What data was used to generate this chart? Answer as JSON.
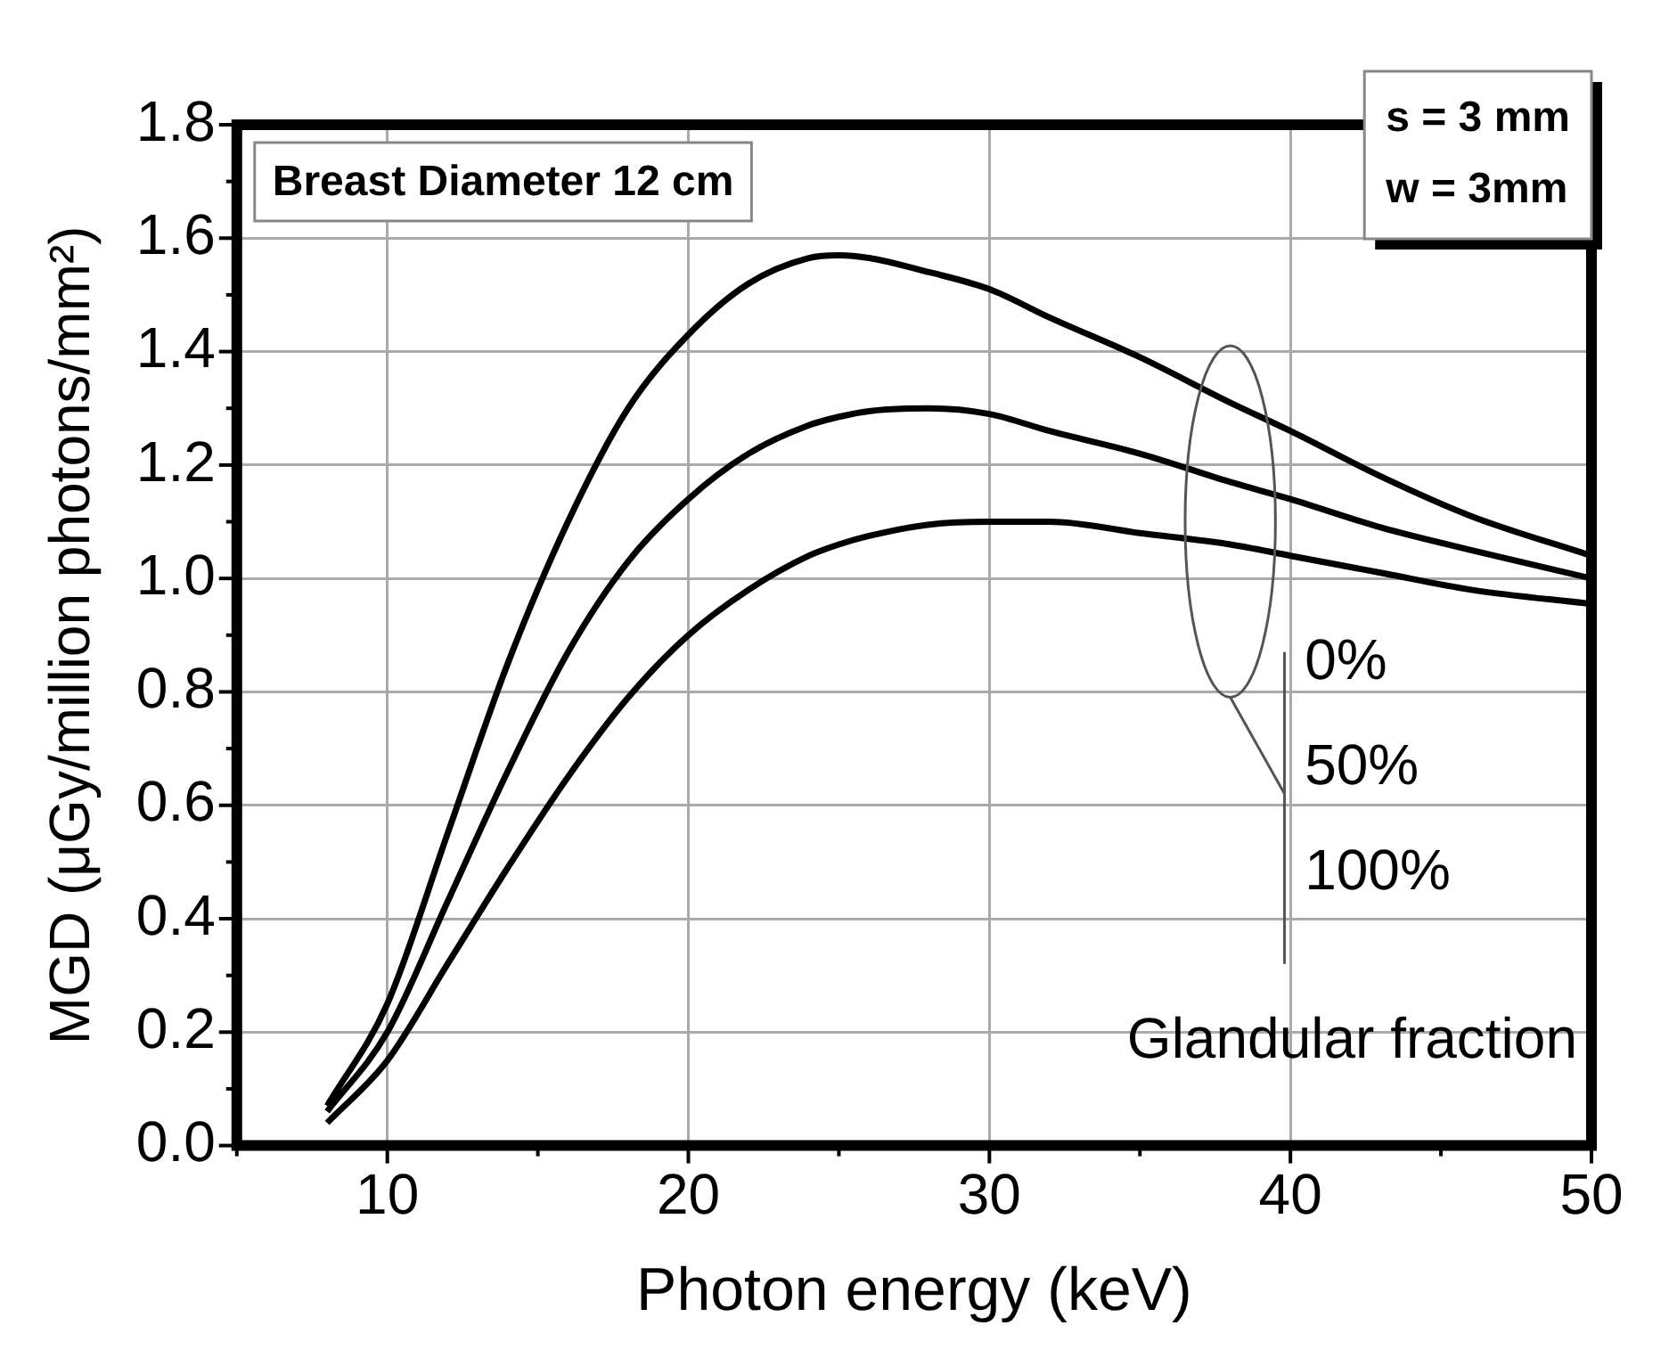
{
  "chart_data": {
    "type": "line",
    "xlabel": "Photon energy (keV)",
    "ylabel": "MGD (μGy/million photons/mm²)",
    "annotations": [
      "Breast Diameter 12 cm",
      "s = 3 mm",
      "w = 3mm",
      "Glandular fraction",
      "0%",
      "50%",
      "100%"
    ],
    "x": [
      8,
      10,
      12,
      14,
      16,
      18,
      20,
      22,
      24,
      25,
      26,
      28,
      30,
      32,
      35,
      38,
      40,
      43,
      46,
      50
    ],
    "series": [
      {
        "color": "#000000",
        "values": [
          0.07,
          0.25,
          0.55,
          0.85,
          1.1,
          1.3,
          1.43,
          1.52,
          1.565,
          1.57,
          1.565,
          1.54,
          1.51,
          1.46,
          1.39,
          1.31,
          1.26,
          1.18,
          1.11,
          1.04
        ]
      },
      {
        "color": "#000000",
        "values": [
          0.06,
          0.2,
          0.43,
          0.66,
          0.87,
          1.03,
          1.14,
          1.22,
          1.27,
          1.285,
          1.295,
          1.3,
          1.29,
          1.26,
          1.22,
          1.17,
          1.14,
          1.09,
          1.05,
          1.0
        ]
      },
      {
        "color": "#000000",
        "values": [
          0.04,
          0.15,
          0.32,
          0.49,
          0.65,
          0.79,
          0.9,
          0.98,
          1.04,
          1.06,
          1.075,
          1.095,
          1.1,
          1.1,
          1.08,
          1.06,
          1.04,
          1.01,
          0.98,
          0.955
        ]
      }
    ],
    "xlim": [
      5,
      50
    ],
    "xticks": [
      10,
      20,
      30,
      40,
      50
    ],
    "ylim": [
      0,
      1.8
    ],
    "yticks": [
      {
        "value": 0,
        "label": "0.0"
      },
      0.2,
      0.4,
      0.6,
      0.8,
      {
        "value": 1,
        "label": "1.0"
      },
      1.2,
      1.4,
      1.6,
      1.8
    ],
    "grid": true,
    "marker": "none",
    "line_style": "solid",
    "legend": false
  }
}
